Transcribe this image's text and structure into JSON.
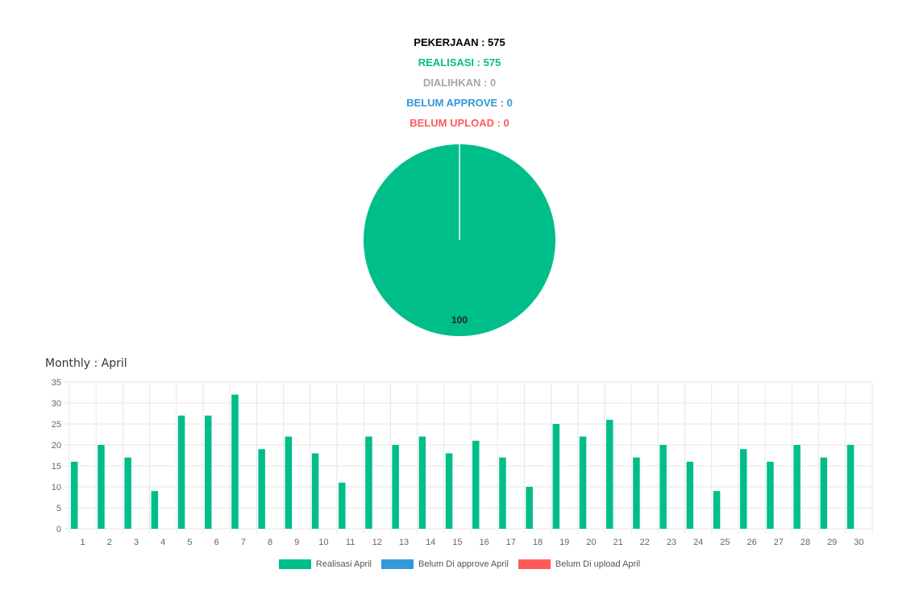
{
  "stats": {
    "pekerjaan": "PEKERJAAN : 575",
    "realisasi": "REALISASI : 575",
    "dialihkan": "DIALIHKAN : 0",
    "belum_approve": "BELUM APPROVE : 0",
    "belum_upload": "BELUM UPLOAD : 0"
  },
  "colors": {
    "pekerjaan": "#000000",
    "realisasi": "#00be8a",
    "dialihkan": "#a6a6a6",
    "belum_approve": "#3498db",
    "belum_upload": "#ff5a5a",
    "grid": "#e6e6e6",
    "axis_text": "#666666"
  },
  "chart_data": [
    {
      "type": "pie",
      "slices": [
        {
          "value": 100,
          "color": "#00be8a",
          "label": "100"
        },
        {
          "value": 0,
          "color": "#3498db",
          "label": ""
        },
        {
          "value": 0,
          "color": "#ff5a5a",
          "label": ""
        }
      ]
    },
    {
      "type": "bar",
      "title": "Monthly : April",
      "categories": [
        "1",
        "2",
        "3",
        "4",
        "5",
        "6",
        "7",
        "8",
        "9",
        "10",
        "11",
        "12",
        "13",
        "14",
        "15",
        "16",
        "17",
        "18",
        "19",
        "20",
        "21",
        "22",
        "23",
        "24",
        "25",
        "26",
        "27",
        "28",
        "29",
        "30"
      ],
      "series": [
        {
          "name": "Realisasi April",
          "color": "#00be8a",
          "values": [
            16,
            20,
            17,
            9,
            27,
            27,
            32,
            19,
            22,
            18,
            11,
            22,
            20,
            22,
            18,
            21,
            17,
            10,
            25,
            22,
            26,
            17,
            20,
            16,
            9,
            19,
            16,
            20,
            17,
            20
          ]
        },
        {
          "name": "Belum Di approve April",
          "color": "#3498db",
          "values": [
            0,
            0,
            0,
            0,
            0,
            0,
            0,
            0,
            0,
            0,
            0,
            0,
            0,
            0,
            0,
            0,
            0,
            0,
            0,
            0,
            0,
            0,
            0,
            0,
            0,
            0,
            0,
            0,
            0,
            0
          ]
        },
        {
          "name": "Belum Di upload April",
          "color": "#ff5a5a",
          "values": [
            0,
            0,
            0,
            0,
            0,
            0,
            0,
            0,
            0,
            0,
            0,
            0,
            0,
            0,
            0,
            0,
            0,
            0,
            0,
            0,
            0,
            0,
            0,
            0,
            0,
            0,
            0,
            0,
            0,
            0
          ]
        }
      ],
      "ylim": [
        0,
        35
      ],
      "yticks": [
        0,
        5,
        10,
        15,
        20,
        25,
        30,
        35
      ],
      "grid": true,
      "legend_position": "bottom"
    }
  ]
}
